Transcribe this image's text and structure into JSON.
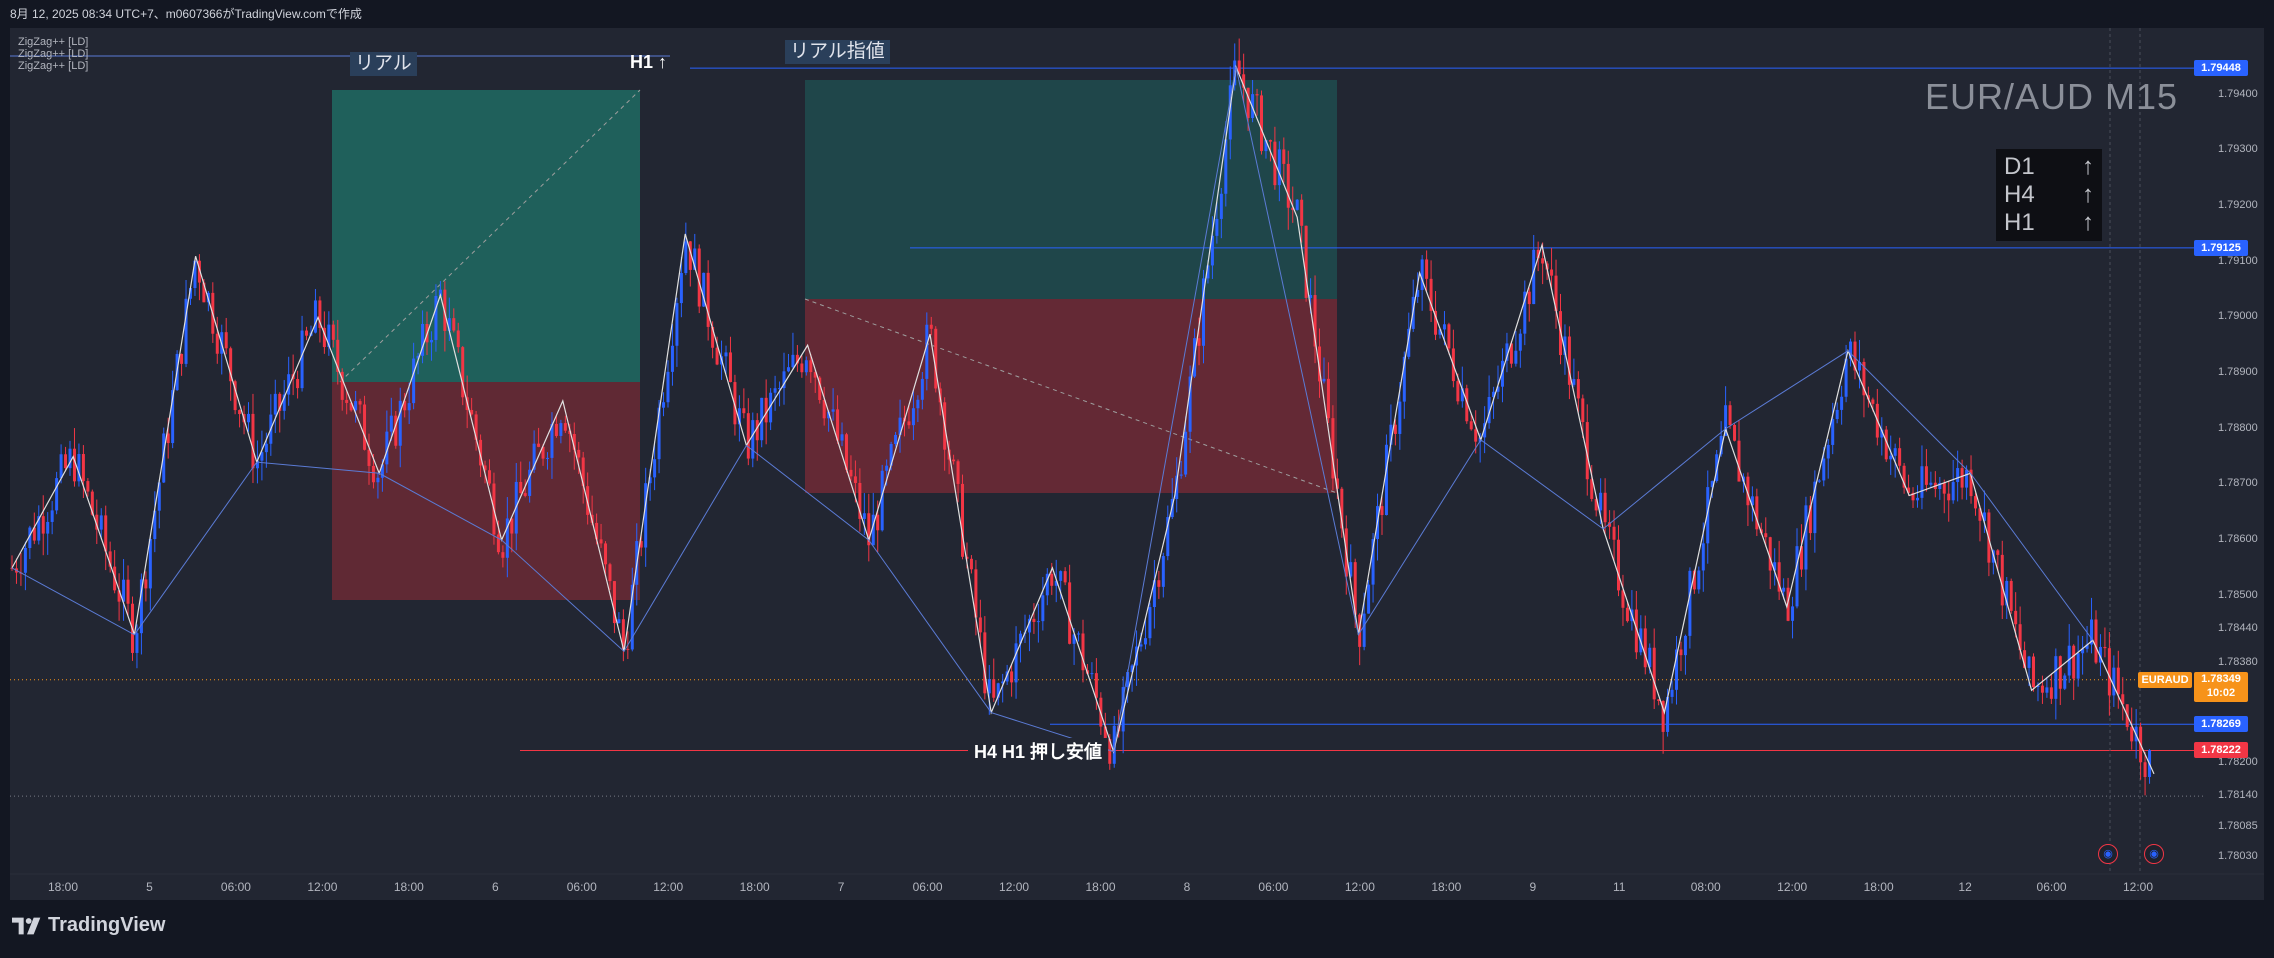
{
  "topbar": {
    "caption": "8月 12, 2025 08:34 UTC+7、m0607366がTradingView.comで作成"
  },
  "legend": [
    "ZigZag++ [LD]",
    "ZigZag++ [LD]",
    "ZigZag++ [LD]"
  ],
  "symbol_watermark": "EUR/AUD M15",
  "trend_box": [
    {
      "tf": "D1",
      "arrow": "↑"
    },
    {
      "tf": "H4",
      "arrow": "↑"
    },
    {
      "tf": "H1",
      "arrow": "↑"
    }
  ],
  "annotations": {
    "real": "リアル",
    "real_limit": "リアル指値",
    "h1_up": "H1 ↑",
    "pushback_low": "H4 H1 押し安値"
  },
  "footer": {
    "brand": "TradingView"
  },
  "colors": {
    "background": "#222632",
    "bull": "#2962ff",
    "bear": "#f23645",
    "zigzag": "#e0e0e0",
    "long_profit": "#1f6b63",
    "long_loss": "#6b2a35",
    "symbol_tag": "#f7931a"
  },
  "chart_data": {
    "type": "candlestick",
    "symbol": "EURAUD",
    "timeframe": "M15",
    "ylim": [
      1.78,
      1.7952
    ],
    "y_ticks": [
      "1.79400",
      "1.79300",
      "1.79200",
      "1.79100",
      "1.79000",
      "1.78900",
      "1.78800",
      "1.78700",
      "1.78600",
      "1.78500",
      "1.78440",
      "1.78380",
      "1.78200",
      "1.78140",
      "1.78085",
      "1.78030"
    ],
    "x_ticks": [
      "18:00",
      "5",
      "06:00",
      "12:00",
      "18:00",
      "6",
      "06:00",
      "12:00",
      "18:00",
      "7",
      "06:00",
      "12:00",
      "18:00",
      "8",
      "06:00",
      "12:00",
      "18:00",
      "9",
      "11",
      "08:00",
      "12:00",
      "18:00",
      "12",
      "06:00",
      "12:00"
    ],
    "price_levels": [
      {
        "label": "1.79448",
        "value": 1.79448,
        "color": "#2962ff"
      },
      {
        "label": "1.79125",
        "value": 1.79125,
        "color": "#2962ff"
      },
      {
        "label": "1.78269",
        "value": 1.78269,
        "color": "#2962ff"
      },
      {
        "label": "1.78222",
        "value": 1.78222,
        "color": "#f23645"
      }
    ],
    "current_price": {
      "symbol": "EURAUD",
      "label": "1.78349",
      "value": 1.78349,
      "countdown": "10:02"
    },
    "zigzag_path": [
      1.7855,
      1.7875,
      1.7843,
      1.7911,
      1.7874,
      1.79,
      1.7872,
      1.7904,
      1.786,
      1.7885,
      1.784,
      1.7915,
      1.7877,
      1.7895,
      1.786,
      1.7897,
      1.7829,
      1.7855,
      1.7822,
      1.7868,
      1.7945,
      1.7918,
      1.7843,
      1.7908,
      1.7878,
      1.7913,
      1.7862,
      1.7829,
      1.788,
      1.7848,
      1.7894,
      1.7868,
      1.7872,
      1.7833,
      1.7842,
      1.7818
    ]
  }
}
